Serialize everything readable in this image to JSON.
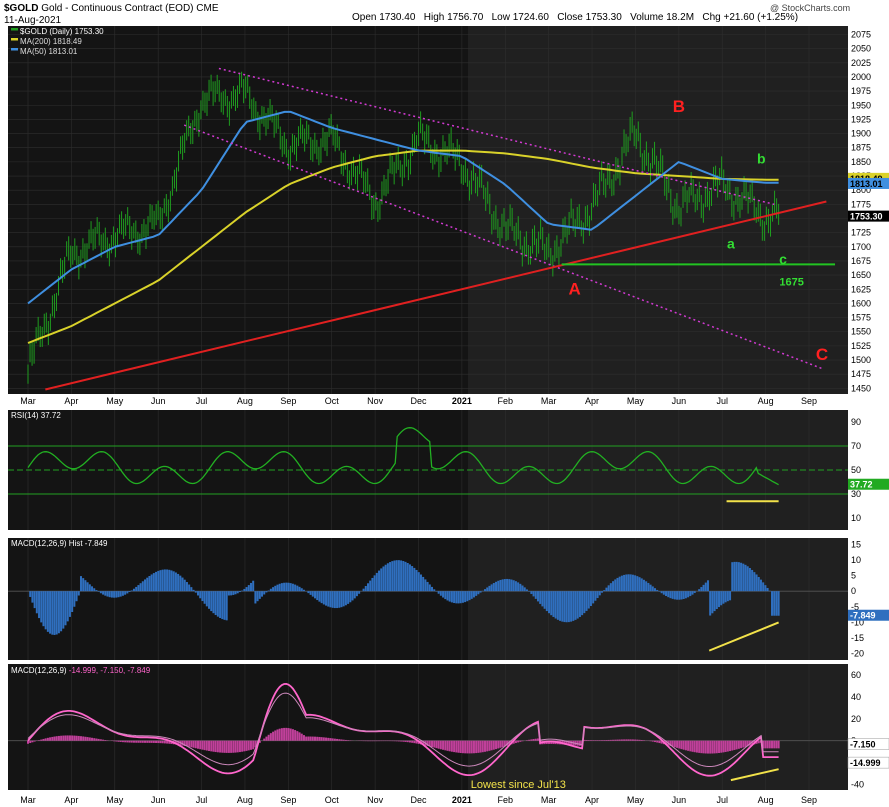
{
  "header": {
    "symbol": "$GOLD",
    "title": "Gold - Continuous Contract (EOD)",
    "exchange": "CME",
    "date": "11-Aug-2021",
    "watermark": "@ StockCharts.com",
    "open_label": "Open",
    "open": "1730.40",
    "high_label": "High",
    "high": "1756.70",
    "low_label": "Low",
    "low": "1724.60",
    "close_label": "Close",
    "close": "1753.30",
    "volume_label": "Volume",
    "volume": "18.2M",
    "chg_label": "Chg",
    "chg": "+21.60 (+1.25%)"
  },
  "colors": {
    "price_bar": "#1f9d1f",
    "ma200": "#d9d22a",
    "ma50": "#3f8fe0",
    "channel": "#d23ad2",
    "trendline": "#e02020",
    "support": "#22c422",
    "rsi_line": "#22b022",
    "hist": "#2f6fbf",
    "macd": "#ff66cc",
    "annotation_yellow": "#f2e24a",
    "label_red": "#ff2020",
    "label_green": "#33dd33"
  },
  "chart_data": [
    {
      "type": "candlestick",
      "panel": "price",
      "legend": [
        "$GOLD (Daily) 1753.30",
        "MA(200) 1818.49",
        "MA(50) 1813.01"
      ],
      "x_labels": [
        "Mar",
        "Apr",
        "May",
        "Jun",
        "Jul",
        "Aug",
        "Sep",
        "Oct",
        "Nov",
        "Dec",
        "2021",
        "Feb",
        "Mar",
        "Apr",
        "May",
        "Jun",
        "Jul",
        "Aug",
        "Sep"
      ],
      "y_ticks": [
        1450,
        1475,
        1500,
        1525,
        1550,
        1575,
        1600,
        1625,
        1650,
        1675,
        1700,
        1725,
        1750,
        1775,
        1800,
        1825,
        1850,
        1875,
        1900,
        1925,
        1950,
        1975,
        2000,
        2025,
        2050,
        2075
      ],
      "ylim": [
        1440,
        2090
      ],
      "series": [
        {
          "name": "$GOLD (Daily)",
          "x": [
            "Mar-20",
            "Apr-20",
            "May-20",
            "Jun-20",
            "Jul-20",
            "Aug-20",
            "Sep-20",
            "Oct-20",
            "Nov-20",
            "Dec-20",
            "Jan-21",
            "Feb-21",
            "Mar-21",
            "Apr-21",
            "May-21",
            "Jun-21",
            "Jul-21",
            "Aug-21"
          ],
          "values": [
            1480,
            1690,
            1720,
            1740,
            1960,
            1970,
            1880,
            1890,
            1780,
            1890,
            1850,
            1730,
            1690,
            1770,
            1900,
            1770,
            1810,
            1753.3
          ]
        },
        {
          "name": "MA(200)",
          "values": [
            1530,
            1560,
            1600,
            1640,
            1700,
            1760,
            1810,
            1840,
            1860,
            1870,
            1870,
            1865,
            1855,
            1840,
            1830,
            1825,
            1820,
            1818.49
          ]
        },
        {
          "name": "MA(50)",
          "values": [
            1600,
            1660,
            1700,
            1720,
            1800,
            1920,
            1940,
            1910,
            1890,
            1870,
            1860,
            1810,
            1740,
            1730,
            1790,
            1850,
            1820,
            1813.01
          ]
        }
      ],
      "last_value_tags": [
        "1818.49",
        "1813.01",
        "1753.30"
      ],
      "annotations": [
        "A",
        "B",
        "C",
        "a",
        "b",
        "c",
        "1675"
      ]
    },
    {
      "type": "line",
      "panel": "rsi",
      "legend": [
        "RSI(14) 37.72"
      ],
      "y_ticks": [
        10,
        30,
        50,
        70,
        90
      ],
      "ylim": [
        0,
        100
      ],
      "value": 37.72,
      "last_value_tag": "37.72"
    },
    {
      "type": "bar",
      "panel": "macd_hist",
      "legend": [
        "MACD(12,26,9) Hist -7.849"
      ],
      "y_ticks": [
        15,
        10,
        5,
        0,
        -5,
        -10,
        -15,
        -20
      ],
      "ylim": [
        -22,
        17
      ],
      "value": -7.849,
      "last_value_tag": "-7.849"
    },
    {
      "type": "line",
      "panel": "macd",
      "legend_label": "MACD(12,26,9)",
      "legend_values": "-14.999, -7.150, -7.849",
      "y_ticks": [
        60,
        40,
        20,
        0,
        -20,
        -40
      ],
      "ylim": [
        -45,
        70
      ],
      "last_value_tags": [
        "-7.150",
        "-14.999"
      ],
      "annotation": "Lowest since Jul'13"
    }
  ]
}
